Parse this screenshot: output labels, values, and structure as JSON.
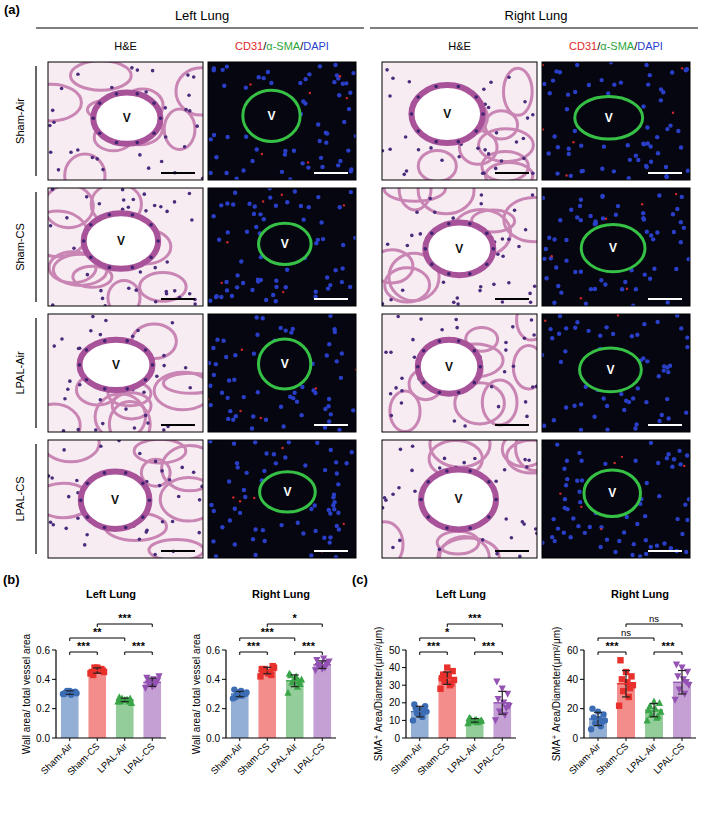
{
  "panel_a": {
    "label": "(a)",
    "groups": [
      {
        "title": "Left Lung"
      },
      {
        "title": "Right Lung"
      }
    ],
    "he_header": "H&E",
    "if_header": [
      {
        "text": "CD31",
        "color": "#e02828"
      },
      {
        "text": "/",
        "color": "#000000"
      },
      {
        "text": "α-SMA",
        "color": "#2aa63a"
      },
      {
        "text": "/",
        "color": "#000000"
      },
      {
        "text": "DAPI",
        "color": "#2a3fd0"
      }
    ],
    "rows": [
      "Sham-Air",
      "Sham-CS",
      "LPAL-Air",
      "LPAL-CS"
    ],
    "vessel_label": "V"
  },
  "panel_labels": {
    "b": "(b)",
    "c": "(c)"
  },
  "chart_data": [
    {
      "type": "bar",
      "title": "Left Lung",
      "y_label": "Wall area/ total vessel area",
      "categories": [
        "Sham-Air",
        "Sham-CS",
        "LPAL-Air",
        "LPAL-CS"
      ],
      "values": [
        0.31,
        0.46,
        0.26,
        0.38
      ],
      "errors": [
        0.012,
        0.018,
        0.012,
        0.028
      ],
      "colors": [
        "#3c6db4",
        "#e8302c",
        "#3aa548",
        "#9452b3"
      ],
      "points": [
        {
          "marker": "circle",
          "values": [
            0.3,
            0.31,
            0.32,
            0.305,
            0.295,
            0.31,
            0.315,
            0.32,
            0.3,
            0.31
          ]
        },
        {
          "marker": "square",
          "values": [
            0.44,
            0.46,
            0.48,
            0.45,
            0.47,
            0.43,
            0.46,
            0.48,
            0.45,
            0.47,
            0.46
          ]
        },
        {
          "marker": "triangle",
          "values": [
            0.25,
            0.26,
            0.27,
            0.24,
            0.26,
            0.25,
            0.27,
            0.26,
            0.28,
            0.25
          ]
        },
        {
          "marker": "triangle-down",
          "values": [
            0.34,
            0.36,
            0.38,
            0.42,
            0.4,
            0.37,
            0.39,
            0.35,
            0.41,
            0.38
          ]
        }
      ],
      "ylim": [
        0,
        0.6
      ],
      "yticks": [
        {
          "value": 0,
          "label": "0.0"
        },
        0.2,
        0.4,
        0.6
      ],
      "annotations": [
        {
          "from": 0,
          "to": 1,
          "text": "***"
        },
        {
          "from": 2,
          "to": 3,
          "text": "***"
        },
        {
          "from": 0,
          "to": 2,
          "text": "**"
        },
        {
          "from": 1,
          "to": 3,
          "text": "***"
        }
      ]
    },
    {
      "type": "bar",
      "title": "Right Lung",
      "y_label": "Wall area/ total vessel area",
      "categories": [
        "Sham-Air",
        "Sham-CS",
        "LPAL-Air",
        "LPAL-CS"
      ],
      "values": [
        0.3,
        0.46,
        0.39,
        0.5
      ],
      "errors": [
        0.018,
        0.022,
        0.04,
        0.026
      ],
      "colors": [
        "#3c6db4",
        "#e8302c",
        "#3aa548",
        "#9452b3"
      ],
      "points": [
        {
          "marker": "circle",
          "values": [
            0.27,
            0.29,
            0.3,
            0.31,
            0.32,
            0.28,
            0.3,
            0.29,
            0.33,
            0.3,
            0.31
          ]
        },
        {
          "marker": "square",
          "values": [
            0.42,
            0.45,
            0.47,
            0.48,
            0.44,
            0.46,
            0.49,
            0.45,
            0.47,
            0.43
          ]
        },
        {
          "marker": "triangle",
          "values": [
            0.31,
            0.35,
            0.38,
            0.4,
            0.42,
            0.43,
            0.37,
            0.41,
            0.44,
            0.39
          ]
        },
        {
          "marker": "triangle-down",
          "values": [
            0.46,
            0.48,
            0.5,
            0.52,
            0.54,
            0.49,
            0.51,
            0.47,
            0.53,
            0.5
          ]
        }
      ],
      "ylim": [
        0,
        0.6
      ],
      "yticks": [
        {
          "value": 0,
          "label": "0.0"
        },
        0.2,
        0.4,
        0.6
      ],
      "annotations": [
        {
          "from": 0,
          "to": 1,
          "text": "***"
        },
        {
          "from": 2,
          "to": 3,
          "text": "***"
        },
        {
          "from": 0,
          "to": 2,
          "text": "***"
        },
        {
          "from": 1,
          "to": 3,
          "text": "*"
        }
      ]
    },
    {
      "type": "bar",
      "title": "Left Lung",
      "y_label": "SMA⁺ Area/Diameter(μm²/μm)",
      "categories": [
        "Sham-Air",
        "Sham-CS",
        "LPAL-Air",
        "LPAL-CS"
      ],
      "values": [
        15,
        34,
        10,
        20
      ],
      "errors": [
        3,
        3.5,
        1,
        6.5
      ],
      "colors": [
        "#3c6db4",
        "#e8302c",
        "#3aa548",
        "#9452b3"
      ],
      "points": [
        {
          "marker": "circle",
          "values": [
            10,
            12,
            14,
            15,
            16,
            17,
            18,
            13,
            19,
            15
          ]
        },
        {
          "marker": "square",
          "values": [
            28,
            30,
            32,
            33,
            35,
            36,
            38,
            40,
            34,
            31,
            36
          ]
        },
        {
          "marker": "triangle",
          "values": [
            8.5,
            9,
            9.5,
            10,
            10.5,
            11,
            9.8,
            10.2,
            11.5,
            9.5
          ]
        },
        {
          "marker": "triangle-down",
          "values": [
            10,
            13,
            15,
            18,
            20,
            22,
            25,
            28,
            32,
            17
          ]
        }
      ],
      "ylim": [
        0,
        50
      ],
      "yticks": [
        0,
        10,
        20,
        30,
        40,
        50
      ],
      "annotations": [
        {
          "from": 0,
          "to": 1,
          "text": "***"
        },
        {
          "from": 2,
          "to": 3,
          "text": "***"
        },
        {
          "from": 0,
          "to": 2,
          "text": "*"
        },
        {
          "from": 1,
          "to": 3,
          "text": "***"
        }
      ]
    },
    {
      "type": "bar",
      "title": "Right Lung",
      "y_label": "SMA⁺ Area/Diameter(μm²/μm)",
      "categories": [
        "Sham-Air",
        "Sham-CS",
        "LPAL-Air",
        "LPAL-CS"
      ],
      "values": [
        13,
        37,
        19,
        38
      ],
      "errors": [
        4.5,
        9,
        4.5,
        8
      ],
      "colors": [
        "#3c6db4",
        "#e8302c",
        "#3aa548",
        "#9452b3"
      ],
      "points": [
        {
          "marker": "circle",
          "values": [
            6,
            8,
            10,
            12,
            13,
            14,
            16,
            18,
            20,
            11
          ]
        },
        {
          "marker": "square",
          "values": [
            22,
            28,
            32,
            36,
            38,
            40,
            42,
            45,
            53,
            34
          ]
        },
        {
          "marker": "triangle",
          "values": [
            12,
            14,
            16,
            18,
            20,
            22,
            24,
            25,
            19,
            15
          ]
        },
        {
          "marker": "triangle-down",
          "values": [
            26,
            30,
            33,
            36,
            40,
            42,
            45,
            48,
            50,
            38
          ]
        }
      ],
      "ylim": [
        0,
        60
      ],
      "yticks": [
        0,
        20,
        40,
        60
      ],
      "annotations": [
        {
          "from": 0,
          "to": 1,
          "text": "***"
        },
        {
          "from": 2,
          "to": 3,
          "text": "***"
        },
        {
          "from": 0,
          "to": 2,
          "text": "ns"
        },
        {
          "from": 1,
          "to": 3,
          "text": "ns"
        }
      ]
    }
  ]
}
